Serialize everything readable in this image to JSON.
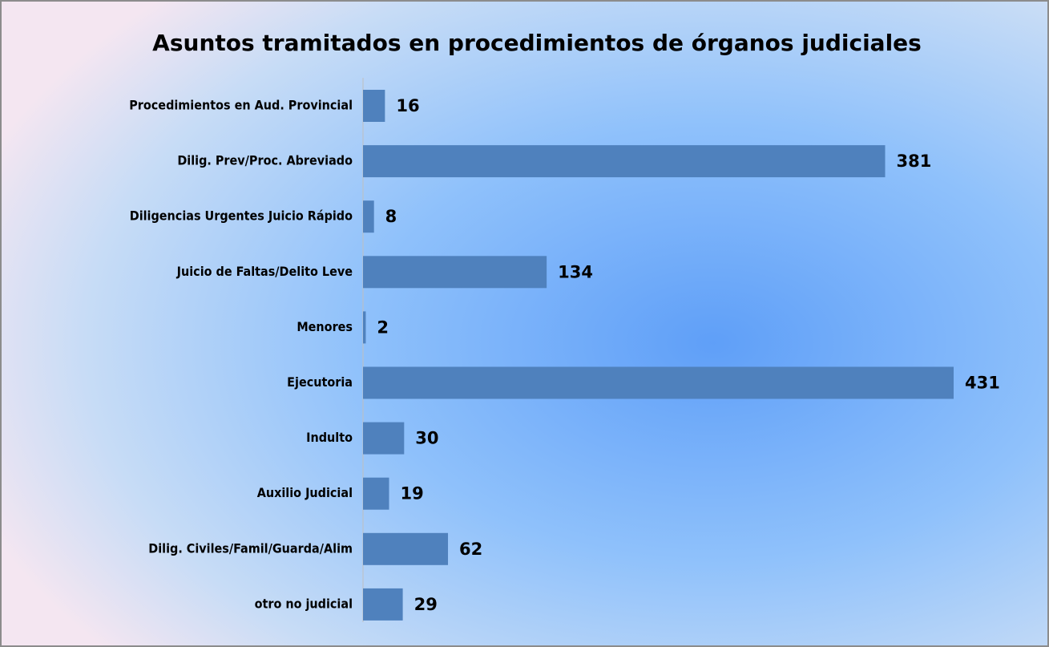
{
  "chart_data": {
    "type": "barh",
    "title": "Asuntos tramitados en procedimientos de órganos judiciales",
    "categories": [
      "Procedimientos en Aud. Provincial",
      "Dilig. Prev/Proc. Abreviado",
      "Diligencias Urgentes Juicio Rápido",
      "Juicio de Faltas/Delito Leve",
      "Menores",
      "Ejecutoria",
      "Indulto",
      "Auxilio Judicial",
      "Dilig. Civiles/Famil/Guarda/Alim",
      "otro no judicial"
    ],
    "values": [
      16,
      381,
      8,
      134,
      2,
      431,
      30,
      19,
      62,
      29
    ],
    "color": "#4f81bd"
  }
}
